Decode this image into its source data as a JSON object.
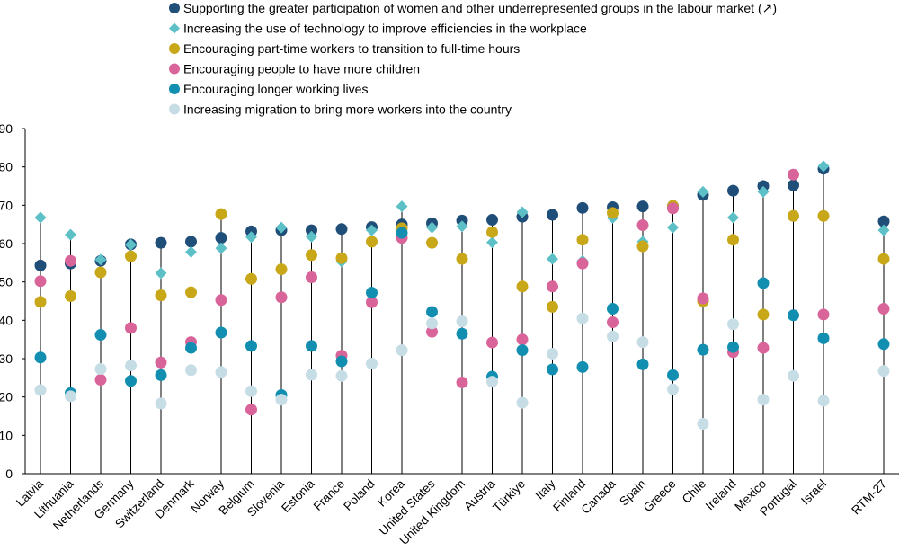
{
  "chart_data": {
    "type": "scatter",
    "ylim": [
      0,
      90
    ],
    "yticks": [
      "0",
      "10",
      "20",
      "30",
      "40",
      "50",
      "60",
      "70",
      "80",
      "90"
    ],
    "grid": false,
    "legend_position": "top",
    "categories": [
      "Latvia",
      "Lithuania",
      "Netherlands",
      "Germany",
      "Switzerland",
      "Denmark",
      "Norway",
      "Belgium",
      "Slovenia",
      "Estonia",
      "France",
      "Poland",
      "Korea",
      "United States",
      "United Kingdom",
      "Austria",
      "Türkiye",
      "Italy",
      "Finland",
      "Canada",
      "Spain",
      "Greece",
      "Chile",
      "Ireland",
      "Mexico",
      "Portugal",
      "Israel",
      "RTM-27"
    ],
    "series": [
      {
        "name": "Supporting the greater participation of women and other underrepresented groups in the labour market (↗)",
        "marker": "circle",
        "color": "#1f4e79",
        "values": [
          54.3,
          54.8,
          55.5,
          59.8,
          60.2,
          60.5,
          61.5,
          63.2,
          63.5,
          63.5,
          63.8,
          64.3,
          65.0,
          65.3,
          66.0,
          66.2,
          67.0,
          67.5,
          69.3,
          69.5,
          69.7,
          69.8,
          72.7,
          73.8,
          75.0,
          75.2,
          79.5,
          65.8
        ]
      },
      {
        "name": "Increasing the use of technology to improve efficiencies in the workplace",
        "marker": "diamond",
        "color": "#5cc0c6",
        "values": [
          66.8,
          62.3,
          55.8,
          59.7,
          52.3,
          57.8,
          58.8,
          61.7,
          64.2,
          61.8,
          55.3,
          63.5,
          69.7,
          64.2,
          64.5,
          60.3,
          68.2,
          56.0,
          55.5,
          66.7,
          60.5,
          64.2,
          73.5,
          66.8,
          73.5,
          null,
          80.2,
          63.5
        ]
      },
      {
        "name": "Encouraging part-time workers to transition to full-time hours",
        "marker": "circle",
        "color": "#c8a718",
        "values": [
          44.8,
          46.3,
          52.5,
          56.7,
          46.5,
          47.3,
          67.7,
          50.8,
          53.3,
          57.0,
          56.2,
          60.5,
          64.0,
          60.2,
          56.0,
          63.0,
          48.8,
          43.5,
          61.0,
          68.0,
          59.3,
          69.8,
          45.0,
          61.0,
          41.5,
          67.2,
          67.2,
          56.0
        ]
      },
      {
        "name": "Encouraging people to have more children",
        "marker": "circle",
        "color": "#d9649a",
        "values": [
          50.2,
          55.5,
          24.5,
          38.0,
          29.0,
          34.3,
          45.3,
          16.7,
          46.0,
          51.2,
          30.8,
          44.7,
          61.5,
          37.0,
          23.8,
          34.2,
          35.0,
          48.8,
          54.8,
          39.5,
          64.8,
          69.2,
          45.7,
          31.7,
          32.8,
          78.0,
          41.5,
          43.0
        ]
      },
      {
        "name": "Encouraging longer working lives",
        "marker": "circle",
        "color": "#128fb0",
        "values": [
          30.3,
          21.0,
          36.2,
          24.2,
          25.7,
          32.8,
          36.8,
          33.3,
          20.5,
          33.3,
          29.3,
          47.2,
          62.8,
          42.2,
          36.5,
          25.3,
          32.2,
          27.2,
          27.8,
          43.0,
          28.5,
          25.7,
          32.3,
          33.0,
          49.7,
          41.3,
          35.3,
          33.8
        ]
      },
      {
        "name": "Increasing migration to bring more workers into the country",
        "marker": "circle",
        "color": "#c7dde6",
        "values": [
          21.8,
          20.2,
          27.3,
          28.2,
          18.3,
          27.0,
          26.5,
          21.5,
          19.3,
          25.8,
          25.5,
          28.7,
          32.2,
          39.2,
          39.7,
          24.0,
          18.5,
          31.3,
          40.5,
          35.8,
          34.3,
          22.0,
          13.0,
          39.0,
          19.3,
          25.5,
          19.0,
          26.8
        ]
      }
    ]
  }
}
